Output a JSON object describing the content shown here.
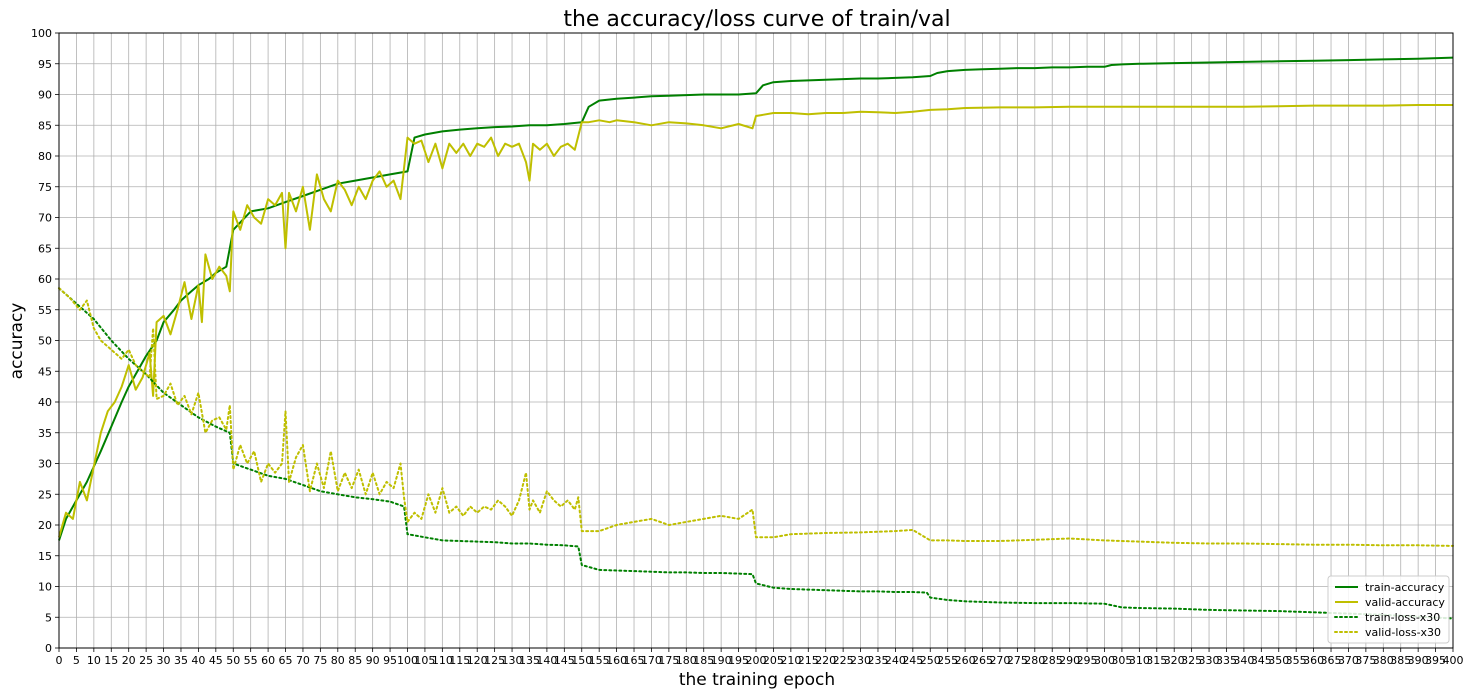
{
  "chart_data": {
    "type": "line",
    "title": "the accuracy/loss curve of train/val",
    "xlabel": "the training epoch",
    "ylabel": "accuracy",
    "xlim": [
      0,
      400
    ],
    "ylim": [
      0,
      100
    ],
    "xtick_step": 5,
    "ytick_step": 5,
    "grid": true,
    "legend_position": "lower-right",
    "series": [
      {
        "name": "train-accuracy",
        "color": "#008000",
        "style": "solid",
        "x": [
          0,
          2,
          5,
          8,
          10,
          12,
          15,
          18,
          20,
          22,
          25,
          28,
          30,
          33,
          35,
          38,
          40,
          43,
          45,
          48,
          50,
          55,
          60,
          65,
          70,
          75,
          80,
          85,
          90,
          95,
          100,
          102,
          105,
          110,
          115,
          120,
          125,
          130,
          135,
          140,
          145,
          150,
          152,
          155,
          160,
          165,
          170,
          175,
          180,
          185,
          190,
          195,
          200,
          202,
          205,
          210,
          215,
          220,
          225,
          230,
          235,
          240,
          245,
          250,
          252,
          255,
          260,
          265,
          270,
          275,
          280,
          285,
          290,
          295,
          300,
          302,
          305,
          310,
          320,
          330,
          340,
          350,
          360,
          370,
          380,
          390,
          400
        ],
        "y": [
          17.5,
          21,
          24,
          27,
          29.5,
          32,
          36,
          40,
          42.5,
          44.5,
          47.5,
          50,
          53,
          55,
          56.5,
          58,
          59,
          60,
          61,
          62,
          68,
          71,
          71.5,
          72.5,
          73.5,
          74.5,
          75.5,
          76,
          76.5,
          77,
          77.5,
          83,
          83.5,
          84,
          84.3,
          84.5,
          84.7,
          84.8,
          85,
          85,
          85.2,
          85.5,
          88,
          89,
          89.3,
          89.5,
          89.7,
          89.8,
          89.9,
          90,
          90,
          90,
          90.2,
          91.5,
          92,
          92.2,
          92.3,
          92.4,
          92.5,
          92.6,
          92.6,
          92.7,
          92.8,
          93,
          93.5,
          93.8,
          94,
          94.1,
          94.2,
          94.3,
          94.3,
          94.4,
          94.4,
          94.5,
          94.5,
          94.8,
          94.9,
          95,
          95.1,
          95.2,
          95.3,
          95.4,
          95.5,
          95.6,
          95.7,
          95.8,
          96
        ]
      },
      {
        "name": "valid-accuracy",
        "color": "#bfbf00",
        "style": "solid",
        "x": [
          0,
          2,
          4,
          6,
          8,
          10,
          12,
          14,
          16,
          18,
          20,
          22,
          24,
          26,
          27,
          28,
          30,
          32,
          34,
          36,
          38,
          40,
          41,
          42,
          44,
          46,
          48,
          49,
          50,
          52,
          54,
          56,
          58,
          60,
          62,
          64,
          65,
          66,
          68,
          70,
          72,
          74,
          76,
          78,
          80,
          82,
          84,
          86,
          88,
          90,
          92,
          94,
          96,
          98,
          100,
          102,
          104,
          106,
          108,
          110,
          112,
          114,
          116,
          118,
          120,
          122,
          124,
          126,
          128,
          130,
          132,
          134,
          135,
          136,
          138,
          140,
          142,
          144,
          146,
          148,
          150,
          152,
          155,
          158,
          160,
          165,
          170,
          175,
          180,
          185,
          190,
          195,
          199,
          200,
          202,
          205,
          210,
          215,
          220,
          225,
          230,
          235,
          240,
          245,
          250,
          255,
          260,
          270,
          280,
          290,
          300,
          310,
          320,
          330,
          340,
          350,
          360,
          370,
          380,
          390,
          400
        ],
        "y": [
          18,
          22,
          21,
          27,
          24,
          29.5,
          35,
          38.5,
          40,
          42.5,
          46,
          42,
          44,
          48,
          41,
          53,
          54,
          51,
          55,
          59.5,
          53.5,
          59,
          53,
          64,
          60,
          62,
          60.5,
          58,
          71,
          68,
          72,
          70,
          69,
          73,
          72,
          74,
          65,
          74,
          71,
          75,
          68,
          77,
          73,
          71,
          76,
          74.5,
          72,
          75,
          73,
          76,
          77.5,
          75,
          76,
          73,
          83,
          82,
          82.5,
          79,
          82,
          78,
          82,
          80.5,
          82,
          80,
          82,
          81.5,
          83,
          80,
          82,
          81.5,
          82,
          79,
          76,
          82,
          81,
          82,
          80,
          81.5,
          82,
          81,
          85.5,
          85.5,
          85.8,
          85.5,
          85.8,
          85.5,
          85,
          85.5,
          85.3,
          85,
          84.5,
          85.2,
          84.5,
          86.5,
          86.7,
          87,
          87,
          86.8,
          87,
          87,
          87.2,
          87.1,
          87,
          87.2,
          87.5,
          87.6,
          87.8,
          87.9,
          87.9,
          88,
          88,
          88,
          88,
          88,
          88,
          88.1,
          88.2,
          88.2,
          88.2,
          88.3,
          88.3
        ]
      },
      {
        "name": "train-loss-x30",
        "color": "#008000",
        "style": "dotted",
        "x": [
          0,
          5,
          10,
          15,
          20,
          25,
          30,
          35,
          40,
          45,
          49,
          50,
          55,
          60,
          65,
          70,
          75,
          80,
          85,
          90,
          95,
          99,
          100,
          105,
          110,
          115,
          120,
          125,
          130,
          135,
          140,
          145,
          149,
          150,
          155,
          160,
          165,
          170,
          175,
          180,
          185,
          190,
          195,
          199,
          200,
          205,
          210,
          215,
          220,
          225,
          230,
          235,
          240,
          245,
          249,
          250,
          255,
          260,
          265,
          270,
          280,
          290,
          300,
          305,
          310,
          320,
          330,
          340,
          350,
          360,
          370,
          380,
          390,
          400
        ],
        "y": [
          58.5,
          56,
          53.5,
          50,
          47,
          44.5,
          41.5,
          39.5,
          37.5,
          36,
          35,
          30,
          29,
          28,
          27.5,
          26.5,
          25.5,
          25,
          24.5,
          24.2,
          23.8,
          23,
          18.5,
          18,
          17.5,
          17.4,
          17.3,
          17.2,
          17,
          17,
          16.8,
          16.7,
          16.5,
          13.5,
          12.7,
          12.6,
          12.5,
          12.4,
          12.3,
          12.3,
          12.2,
          12.2,
          12.1,
          12,
          10.5,
          9.8,
          9.6,
          9.5,
          9.4,
          9.3,
          9.2,
          9.2,
          9.1,
          9.1,
          9,
          8.2,
          7.8,
          7.6,
          7.5,
          7.4,
          7.3,
          7.3,
          7.2,
          6.6,
          6.5,
          6.4,
          6.2,
          6.1,
          6,
          5.8,
          5.6,
          5.4,
          5.1,
          4.8
        ]
      },
      {
        "name": "valid-loss-x30",
        "color": "#bfbf00",
        "style": "dotted",
        "x": [
          0,
          3,
          6,
          8,
          10,
          12,
          14,
          16,
          18,
          20,
          22,
          24,
          26,
          27,
          28,
          30,
          32,
          34,
          36,
          38,
          40,
          42,
          44,
          46,
          48,
          49,
          50,
          52,
          54,
          56,
          58,
          60,
          62,
          64,
          65,
          66,
          68,
          70,
          72,
          74,
          76,
          78,
          80,
          82,
          84,
          86,
          88,
          90,
          92,
          94,
          96,
          98,
          99,
          100,
          102,
          104,
          106,
          108,
          110,
          112,
          114,
          116,
          118,
          120,
          122,
          124,
          126,
          128,
          130,
          132,
          134,
          135,
          136,
          138,
          140,
          142,
          144,
          146,
          148,
          149,
          150,
          155,
          160,
          165,
          170,
          175,
          180,
          185,
          190,
          195,
          199,
          200,
          205,
          210,
          220,
          230,
          240,
          245,
          250,
          255,
          260,
          270,
          280,
          290,
          300,
          310,
          320,
          330,
          340,
          350,
          360,
          370,
          380,
          390,
          400
        ],
        "y": [
          58.5,
          57,
          55,
          56.5,
          52,
          50,
          49,
          48,
          47,
          48.5,
          46,
          45,
          44,
          52,
          40.5,
          41,
          43,
          39.5,
          41,
          38,
          41.5,
          35,
          37,
          37.5,
          35.5,
          39.5,
          29,
          33,
          30,
          32,
          27,
          30,
          28.5,
          30,
          38.5,
          27,
          31,
          33,
          25.5,
          30,
          26,
          32,
          25.5,
          28.5,
          26,
          29,
          25,
          28.5,
          25,
          27,
          26,
          30,
          24.5,
          20.5,
          22,
          21,
          25,
          22,
          26,
          22,
          23,
          21.5,
          23,
          22,
          23,
          22.5,
          24,
          23,
          21.5,
          24,
          28.5,
          22.5,
          24,
          22,
          25.5,
          24,
          23,
          24,
          22.5,
          24.5,
          19,
          19,
          20,
          20.5,
          21,
          20,
          20.5,
          21,
          21.5,
          21,
          22.5,
          18,
          18,
          18.5,
          18.7,
          18.8,
          19,
          19.2,
          17.5,
          17.5,
          17.4,
          17.4,
          17.6,
          17.8,
          17.5,
          17.3,
          17.1,
          17,
          17,
          16.9,
          16.8,
          16.8,
          16.7,
          16.7,
          16.6
        ]
      }
    ]
  }
}
